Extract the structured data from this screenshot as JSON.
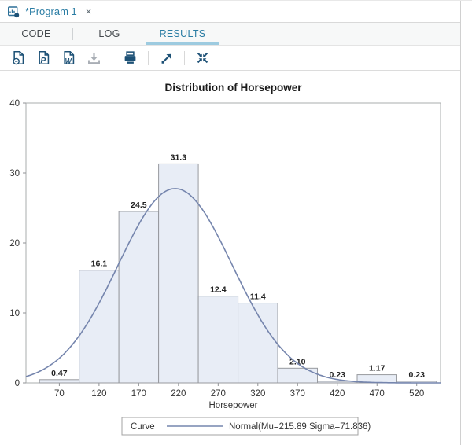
{
  "doc_tab": {
    "title": "*Program 1",
    "close_glyph": "×"
  },
  "tab_strip": {
    "tabs": [
      {
        "label": "CODE",
        "active": false
      },
      {
        "label": "LOG",
        "active": false
      },
      {
        "label": "RESULTS",
        "active": true
      }
    ]
  },
  "toolbar": {
    "icons": [
      {
        "name": "download-html-file",
        "disabled": false
      },
      {
        "name": "download-pdf-file",
        "disabled": false
      },
      {
        "name": "download-rtf-file",
        "disabled": false
      },
      {
        "name": "download",
        "disabled": true
      },
      {
        "name": "print",
        "disabled": false
      },
      {
        "name": "open-in-new-window",
        "disabled": false
      },
      {
        "name": "collapse",
        "disabled": false
      }
    ]
  },
  "colors": {
    "accent_blue": "#2b7da4",
    "icon_navy": "#1d5176",
    "disabled_gray": "#a9aeb5"
  },
  "chart_data": {
    "type": "bar",
    "subtype": "histogram-with-normal-curve",
    "title": "Distribution of Horsepower",
    "xlabel": "Horsepower",
    "ylabel": "",
    "bin_midpoints": [
      70,
      120,
      170,
      220,
      270,
      320,
      370,
      420,
      470,
      520
    ],
    "bin_width": 50,
    "values": [
      0.47,
      16.1,
      24.5,
      31.3,
      12.4,
      11.4,
      2.1,
      0.23,
      1.17,
      0.23
    ],
    "bar_labels": [
      "0.47",
      "16.1",
      "24.5",
      "31.3",
      "12.4",
      "11.4",
      "2.10",
      "0.23",
      "1.17",
      "0.23"
    ],
    "xticks": [
      70,
      120,
      170,
      220,
      270,
      320,
      370,
      420,
      470,
      520
    ],
    "yticks": [
      0,
      10,
      20,
      30,
      40
    ],
    "xlim": [
      28,
      550
    ],
    "ylim": [
      0,
      40
    ],
    "grid": false,
    "curve": {
      "type": "normal",
      "mu": 215.89,
      "sigma": 71.836
    },
    "legend": {
      "position": "bottom",
      "title": "Curve",
      "entry": "Normal(Mu=215.89 Sigma=71.836)"
    },
    "colors": {
      "bar_fill": "#e8edf6",
      "bar_stroke": "#97999e",
      "curve": "#7585ad",
      "frame": "#aaacae",
      "axis": "#8f9194",
      "text": "#333333",
      "title": "#1a1a1a"
    }
  }
}
